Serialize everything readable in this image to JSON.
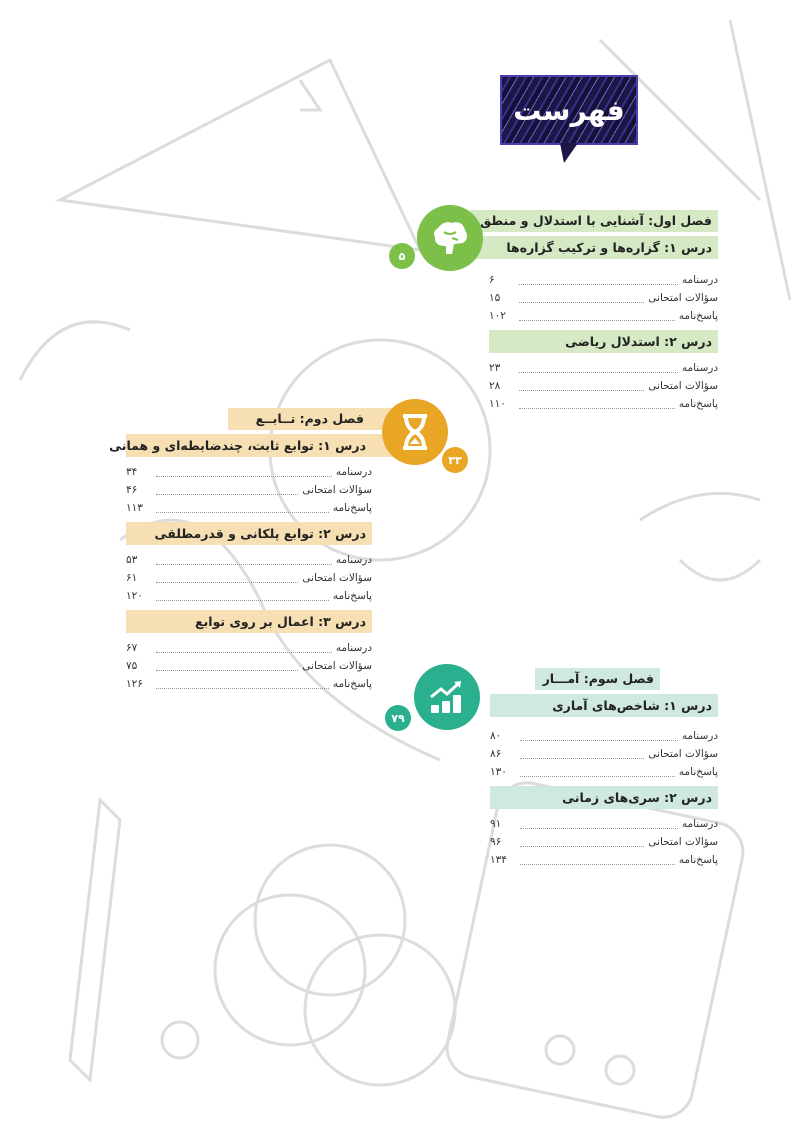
{
  "page_title": "فهرست",
  "colors": {
    "chapter1": "#7cc04a",
    "chapter2": "#e8a624",
    "chapter3": "#2bb08f",
    "title_bg": "#1c1747"
  },
  "chapters": [
    {
      "title": "فصل اول: آشنایی با استدلال و منطق ریاضی",
      "page": "۵",
      "icon": "brain-icon",
      "lessons": [
        {
          "title": "درس ۱: گزاره‌ها و ترکیب گزاره‌ها",
          "entries": [
            {
              "label": "درسنامه",
              "page": "۶"
            },
            {
              "label": "سؤالات امتحانی",
              "page": "۱۵"
            },
            {
              "label": "پاسخ‌نامه",
              "page": "۱۰۲"
            }
          ]
        },
        {
          "title": "درس ۲: استدلال ریاضی",
          "entries": [
            {
              "label": "درسنامه",
              "page": "۲۳"
            },
            {
              "label": "سؤالات امتحانی",
              "page": "۲۸"
            },
            {
              "label": "پاسخ‌نامه",
              "page": "۱۱۰"
            }
          ]
        }
      ]
    },
    {
      "title": "فصل دوم: تــابــع",
      "page": "۳۳",
      "icon": "hourglass-icon",
      "lessons": [
        {
          "title": "درس ۱: توابع ثابت، چندضابطه‌ای و همانی",
          "entries": [
            {
              "label": "درسنامه",
              "page": "۳۴"
            },
            {
              "label": "سؤالات امتحانی",
              "page": "۴۶"
            },
            {
              "label": "پاسخ‌نامه",
              "page": "۱۱۳"
            }
          ]
        },
        {
          "title": "درس ۲: توابع پلکانی و قدرمطلقی",
          "entries": [
            {
              "label": "درسنامه",
              "page": "۵۳"
            },
            {
              "label": "سؤالات امتحانی",
              "page": "۶۱"
            },
            {
              "label": "پاسخ‌نامه",
              "page": "۱۲۰"
            }
          ]
        },
        {
          "title": "درس ۳: اعمال بر روی توابع",
          "entries": [
            {
              "label": "درسنامه",
              "page": "۶۷"
            },
            {
              "label": "سؤالات امتحانی",
              "page": "۷۵"
            },
            {
              "label": "پاسخ‌نامه",
              "page": "۱۲۶"
            }
          ]
        }
      ]
    },
    {
      "title": "فصل سوم: آمـــار",
      "page": "۷۹",
      "icon": "growth-chart-icon",
      "lessons": [
        {
          "title": "درس ۱: شاخص‌های آماری",
          "entries": [
            {
              "label": "درسنامه",
              "page": "۸۰"
            },
            {
              "label": "سؤالات امتحانی",
              "page": "۸۶"
            },
            {
              "label": "پاسخ‌نامه",
              "page": "۱۳۰"
            }
          ]
        },
        {
          "title": "درس ۲: سری‌های زمانی",
          "entries": [
            {
              "label": "درسنامه",
              "page": "۹۱"
            },
            {
              "label": "سؤالات امتحانی",
              "page": "۹۶"
            },
            {
              "label": "پاسخ‌نامه",
              "page": "۱۳۴"
            }
          ]
        }
      ]
    }
  ]
}
